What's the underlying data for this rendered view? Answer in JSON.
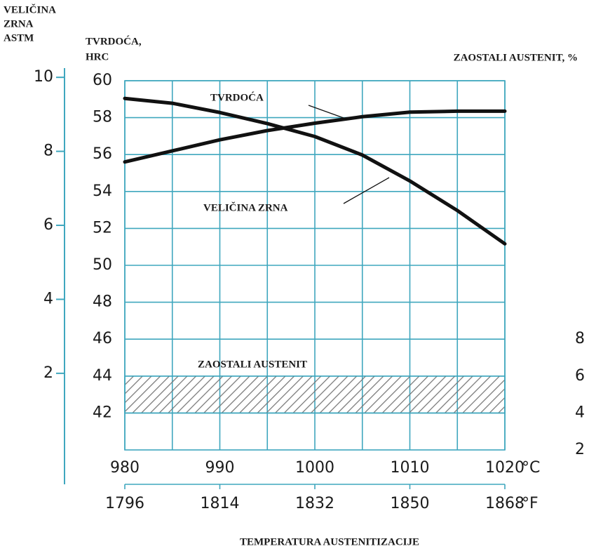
{
  "chart_data": {
    "type": "line",
    "x_label": "TEMPERATURA AUSTENITIZACIJE",
    "x": [
      980,
      985,
      990,
      995,
      1000,
      1005,
      1010,
      1015,
      1020
    ],
    "xlim": [
      980,
      1020
    ],
    "xticks": [
      980,
      990,
      1000,
      1010,
      1020
    ],
    "x_unit": "°C",
    "x2lim": [
      1796,
      1868
    ],
    "x2ticks": [
      1796,
      1814,
      1832,
      1850,
      1868
    ],
    "x2_unit": "°F",
    "xgrid": [
      980,
      985,
      990,
      995,
      1000,
      1005,
      1010,
      1015,
      1020
    ],
    "y_label": [
      "TVRDOĆA,",
      "HRC"
    ],
    "ylim": [
      40,
      60
    ],
    "yticks": [
      42,
      44,
      46,
      48,
      50,
      52,
      54,
      56,
      58,
      60
    ],
    "y3_label": [
      "VELIČINA",
      "ZRNA",
      "ASTM"
    ],
    "y3lim": [
      -1,
      10.25
    ],
    "y3ticks": [
      2,
      4,
      6,
      8,
      10
    ],
    "y2_label": "ZAOSTALI AUSTENIT, %",
    "y2lim": [
      2,
      22
    ],
    "y2ticks": [
      2,
      4,
      6,
      8
    ],
    "grid": true,
    "grid_color": "#3fa7be",
    "series": [
      {
        "name": "TVRDOĆA",
        "color": "#111111",
        "axis": "y",
        "values": [
          55.6,
          56.2,
          56.8,
          57.3,
          57.7,
          58.05,
          58.3,
          58.35,
          58.35
        ]
      },
      {
        "name": "VELIČINA ZRNA",
        "color": "#111111",
        "axis": "y3",
        "values": [
          9.43,
          9.3,
          9.05,
          8.75,
          8.4,
          7.9,
          7.2,
          6.4,
          5.5
        ]
      }
    ],
    "band": {
      "name": "ZAOSTALI AUSTENIT",
      "axis": "y2",
      "x": [
        980,
        1020
      ],
      "low": 4,
      "high": 6,
      "color": "#777777"
    }
  }
}
